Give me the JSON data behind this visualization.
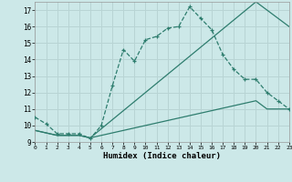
{
  "xlabel": "Humidex (Indice chaleur)",
  "background_color": "#cce8e8",
  "grid_color": "#b8d4d4",
  "line_color": "#2e7d6e",
  "xlim": [
    0,
    23
  ],
  "ylim": [
    9,
    17.5
  ],
  "xticks": [
    0,
    1,
    2,
    3,
    4,
    5,
    6,
    7,
    8,
    9,
    10,
    11,
    12,
    13,
    14,
    15,
    16,
    17,
    18,
    19,
    20,
    21,
    22,
    23
  ],
  "yticks": [
    9,
    10,
    11,
    12,
    13,
    14,
    15,
    16,
    17
  ],
  "line1_x": [
    0,
    1,
    2,
    3,
    4,
    5,
    6,
    7,
    8,
    9,
    10,
    11,
    12,
    13,
    14,
    15,
    16,
    17,
    18,
    19,
    20,
    21,
    22,
    23
  ],
  "line1_y": [
    10.5,
    10.1,
    9.5,
    9.5,
    9.5,
    9.2,
    10.0,
    12.4,
    14.6,
    13.9,
    15.2,
    15.4,
    15.9,
    16.0,
    17.2,
    16.5,
    15.8,
    14.3,
    13.4,
    12.8,
    12.8,
    12.0,
    11.5,
    11.0
  ],
  "line2_x": [
    0,
    1,
    2,
    3,
    4,
    5,
    6,
    7,
    8,
    9,
    10,
    11,
    12,
    13,
    14,
    15,
    16,
    17,
    18,
    19,
    20,
    21,
    22,
    23
  ],
  "line2_y": [
    9.7,
    9.55,
    9.4,
    9.4,
    9.4,
    9.25,
    9.4,
    9.55,
    9.7,
    9.85,
    10.0,
    10.15,
    10.3,
    10.45,
    10.6,
    10.75,
    10.9,
    11.05,
    11.2,
    11.35,
    11.5,
    11.0,
    11.0,
    11.0
  ],
  "line3_x": [
    0,
    1,
    2,
    3,
    4,
    5,
    6,
    7,
    8,
    9,
    10,
    11,
    12,
    13,
    14,
    15,
    16,
    17,
    18,
    19,
    20,
    21,
    22,
    23
  ],
  "line3_y": [
    9.7,
    9.55,
    9.4,
    9.4,
    9.4,
    9.25,
    9.8,
    10.35,
    10.9,
    11.45,
    12.0,
    12.55,
    13.1,
    13.65,
    14.2,
    14.75,
    15.3,
    15.85,
    16.4,
    16.95,
    17.5,
    17.0,
    16.5,
    16.0
  ]
}
